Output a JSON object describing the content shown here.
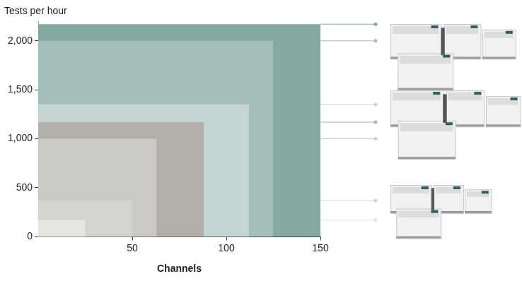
{
  "chart_data": {
    "type": "rectangles",
    "y_label": "Tests per hour",
    "x_label": "Channels",
    "x": [
      150,
      125,
      112,
      88,
      63,
      50,
      25
    ],
    "values": [
      2170,
      2000,
      1350,
      1170,
      1000,
      370,
      170
    ],
    "colors": [
      "#84a9a3",
      "#a3bebb",
      "#c5d5d3",
      "#b1afa8",
      "#cac9c3",
      "#d4d3cd",
      "#e6e6e1"
    ],
    "xlim": [
      0,
      150
    ],
    "xticks": [
      50,
      100,
      150
    ],
    "ylim": [
      0,
      2200
    ],
    "yticks": [
      0,
      500,
      {
        "value": 1000,
        "label": "1,000"
      },
      {
        "value": 1500,
        "label": "1,500"
      },
      {
        "value": 2000,
        "label": "2,000"
      }
    ],
    "grid": false
  }
}
